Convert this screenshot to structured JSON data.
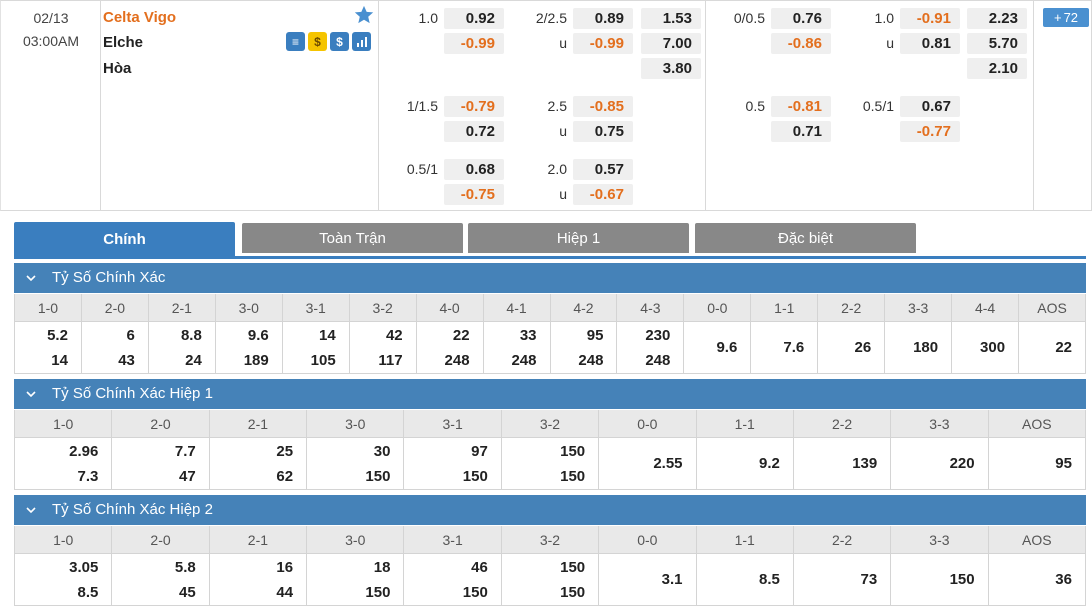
{
  "match": {
    "date": "02/13",
    "time": "03:00AM",
    "home": "Celta Vigo",
    "away": "Elche",
    "draw": "Hòa",
    "more_count": "72",
    "icons": [
      "lineup-icon",
      "money-icon",
      "dollar-icon",
      "stats-icon"
    ]
  },
  "odds": {
    "ft_hdp": [
      {
        "line": "1.0",
        "home": "0.92",
        "away": "-0.99"
      },
      {
        "line": "1/1.5",
        "home": "-0.79",
        "away": "0.72"
      },
      {
        "line": "0.5/1",
        "home": "0.68",
        "away": "-0.75"
      }
    ],
    "ft_ou": [
      {
        "line": "2/2.5",
        "over": "0.89",
        "under_label": "u",
        "under": "-0.99"
      },
      {
        "line": "2.5",
        "over": "-0.85",
        "under_label": "u",
        "under": "0.75"
      },
      {
        "line": "2.0",
        "over": "0.57",
        "under_label": "u",
        "under": "-0.67"
      }
    ],
    "ft_1x2": {
      "home": "1.53",
      "away": "7.00",
      "draw": "3.80"
    },
    "h1_hdp": [
      {
        "line": "0/0.5",
        "home": "0.76",
        "away": "-0.86"
      },
      {
        "line": "0.5",
        "home": "-0.81",
        "away": "0.71"
      }
    ],
    "h1_ou": [
      {
        "line": "1.0",
        "over": "-0.91",
        "under_label": "u",
        "under": "0.81"
      },
      {
        "line": "0.5/1",
        "over": "0.67",
        "under_label": "",
        "under": "-0.77"
      }
    ],
    "h1_1x2": {
      "home": "2.23",
      "away": "5.70",
      "draw": "2.10"
    }
  },
  "tabs": [
    {
      "label": "Chính",
      "active": true
    },
    {
      "label": "Toàn Trận",
      "active": false
    },
    {
      "label": "Hiệp 1",
      "active": false
    },
    {
      "label": "Đặc biệt",
      "active": false
    }
  ],
  "sections": [
    {
      "title": "Tỷ Số Chính Xác",
      "headers": [
        "1-0",
        "2-0",
        "2-1",
        "3-0",
        "3-1",
        "3-2",
        "4-0",
        "4-1",
        "4-2",
        "4-3",
        "0-0",
        "1-1",
        "2-2",
        "3-3",
        "4-4",
        "AOS"
      ],
      "cells": [
        [
          "5.2",
          "14"
        ],
        [
          "6",
          "43"
        ],
        [
          "8.8",
          "24"
        ],
        [
          "9.6",
          "189"
        ],
        [
          "14",
          "105"
        ],
        [
          "42",
          "117"
        ],
        [
          "22",
          "248"
        ],
        [
          "33",
          "248"
        ],
        [
          "95",
          "248"
        ],
        [
          "230",
          "248"
        ],
        [
          "9.6"
        ],
        [
          "7.6"
        ],
        [
          "26"
        ],
        [
          "180"
        ],
        [
          "300"
        ],
        [
          "22"
        ]
      ]
    },
    {
      "title": "Tỷ Số Chính Xác Hiệp 1",
      "headers": [
        "1-0",
        "2-0",
        "2-1",
        "3-0",
        "3-1",
        "3-2",
        "0-0",
        "1-1",
        "2-2",
        "3-3",
        "AOS"
      ],
      "cells": [
        [
          "2.96",
          "7.3"
        ],
        [
          "7.7",
          "47"
        ],
        [
          "25",
          "62"
        ],
        [
          "30",
          "150"
        ],
        [
          "97",
          "150"
        ],
        [
          "150",
          "150"
        ],
        [
          "2.55"
        ],
        [
          "9.2"
        ],
        [
          "139"
        ],
        [
          "220"
        ],
        [
          "95"
        ]
      ]
    },
    {
      "title": "Tỷ Số Chính Xác Hiệp 2",
      "headers": [
        "1-0",
        "2-0",
        "2-1",
        "3-0",
        "3-1",
        "3-2",
        "0-0",
        "1-1",
        "2-2",
        "3-3",
        "AOS"
      ],
      "cells": [
        [
          "3.05",
          "8.5"
        ],
        [
          "5.8",
          "45"
        ],
        [
          "16",
          "44"
        ],
        [
          "18",
          "150"
        ],
        [
          "46",
          "150"
        ],
        [
          "150",
          "150"
        ],
        [
          "3.1"
        ],
        [
          "8.5"
        ],
        [
          "73"
        ],
        [
          "150"
        ],
        [
          "36"
        ]
      ]
    }
  ],
  "colors": {
    "accent": "#3a7ebf",
    "section": "#4582b8",
    "negative": "#e36f1e",
    "tab_inactive": "#888888"
  }
}
